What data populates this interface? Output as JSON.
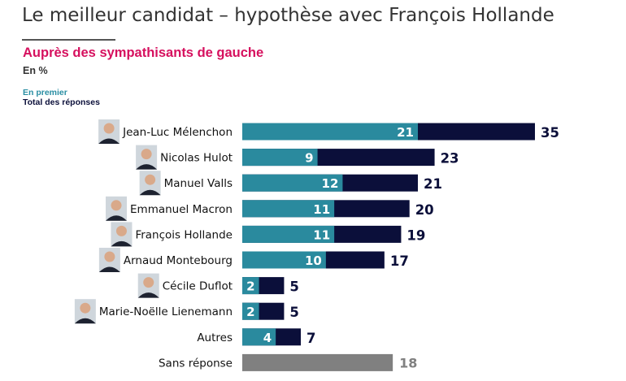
{
  "chart_data": {
    "type": "bar",
    "title": "Le meilleur candidat – hypothèse avec François Hollande",
    "subtitle": "Auprès des sympathisants de gauche",
    "unit": "En %",
    "legend": [
      {
        "name": "En premier",
        "color": "#2a8a9e"
      },
      {
        "name": "Total des réponses",
        "color": "#0b0f3a"
      }
    ],
    "categories": [
      "Jean-Luc Mélenchon",
      "Nicolas Hulot",
      "Manuel Valls",
      "Emmanuel Macron",
      "François Hollande",
      "Arnaud Montebourg",
      "Cécile Duflot",
      "Marie-Noëlle Lienemann",
      "Autres",
      "Sans réponse"
    ],
    "has_photo": [
      true,
      true,
      true,
      true,
      true,
      true,
      true,
      true,
      false,
      false
    ],
    "series": [
      {
        "name": "En premier",
        "values": [
          21,
          9,
          12,
          11,
          11,
          10,
          2,
          2,
          4,
          null
        ]
      },
      {
        "name": "Total des réponses",
        "values": [
          35,
          23,
          21,
          20,
          19,
          17,
          5,
          5,
          7,
          18
        ]
      }
    ],
    "colors": {
      "first": "#2a8a9e",
      "total": "#0b0f3a",
      "none": "#808080",
      "title": "#333333",
      "subtitle": "#d6105e"
    },
    "xlim": [
      0,
      35
    ]
  }
}
